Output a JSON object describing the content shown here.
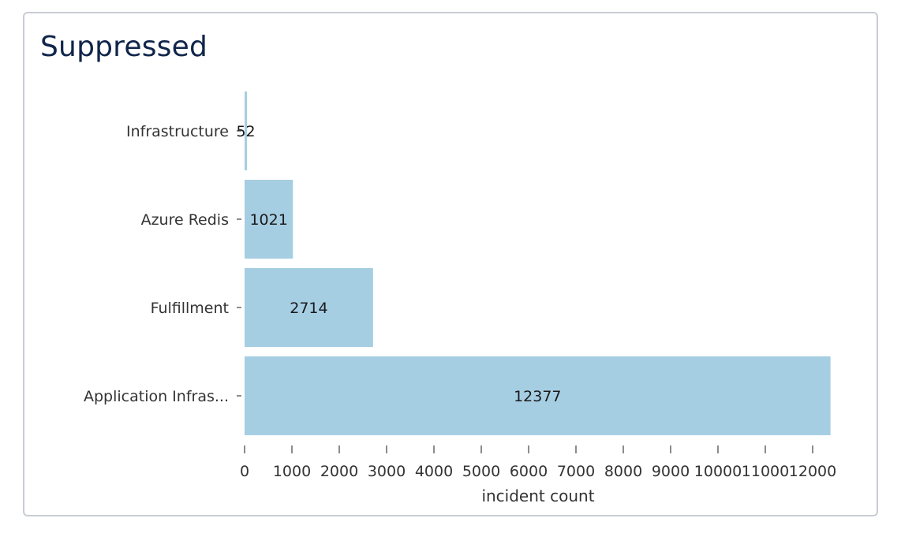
{
  "card": {
    "title": "Suppressed"
  },
  "chart_data": {
    "type": "bar",
    "orientation": "horizontal",
    "categories": [
      "Infrastructure",
      "Azure Redis",
      "Fulfillment",
      "Application Infras..."
    ],
    "values": [
      52,
      1021,
      2714,
      12377
    ],
    "xlabel": "incident count",
    "ylabel": "",
    "xlim": [
      0,
      12400
    ],
    "xticks": [
      0,
      1000,
      2000,
      3000,
      4000,
      5000,
      6000,
      7000,
      8000,
      9000,
      10000,
      11000,
      12000
    ],
    "grid": false,
    "legend": "none",
    "bar_color": "#a6cee3",
    "label_color": "#1a1a1a",
    "axis_color": "#666666"
  }
}
